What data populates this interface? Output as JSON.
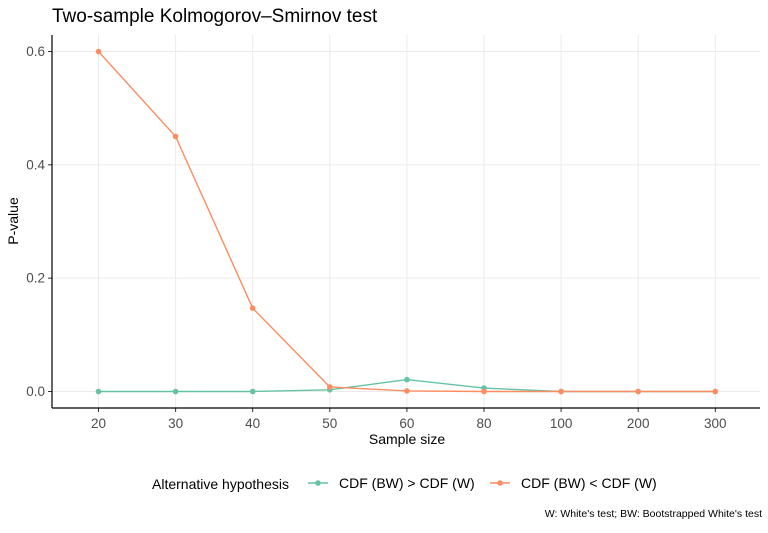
{
  "chart_data": {
    "type": "line",
    "title": "Two-sample Kolmogorov–Smirnov test",
    "xlabel": "Sample size",
    "ylabel": "P-value",
    "categories": [
      "20",
      "30",
      "40",
      "50",
      "60",
      "80",
      "100",
      "200",
      "300"
    ],
    "yticks": [
      "0.0",
      "0.2",
      "0.4",
      "0.6"
    ],
    "ylim": [
      -0.03,
      0.63
    ],
    "grid": true,
    "legend": {
      "title": "Alternative hypothesis",
      "placement": "bottom"
    },
    "series": [
      {
        "name": "CDF (BW) > CDF (W)",
        "color": "#66c2a5",
        "values": [
          0.0,
          0.0,
          0.0,
          0.003,
          0.021,
          0.006,
          0.0,
          0.0,
          0.0
        ]
      },
      {
        "name": "CDF (BW) < CDF (W)",
        "color": "#fc8d62",
        "values": [
          0.6,
          0.45,
          0.147,
          0.008,
          0.001,
          0.0,
          0.0,
          0.0,
          0.0
        ]
      }
    ],
    "caption": "W: White's test; BW: Bootstrapped White's test"
  }
}
